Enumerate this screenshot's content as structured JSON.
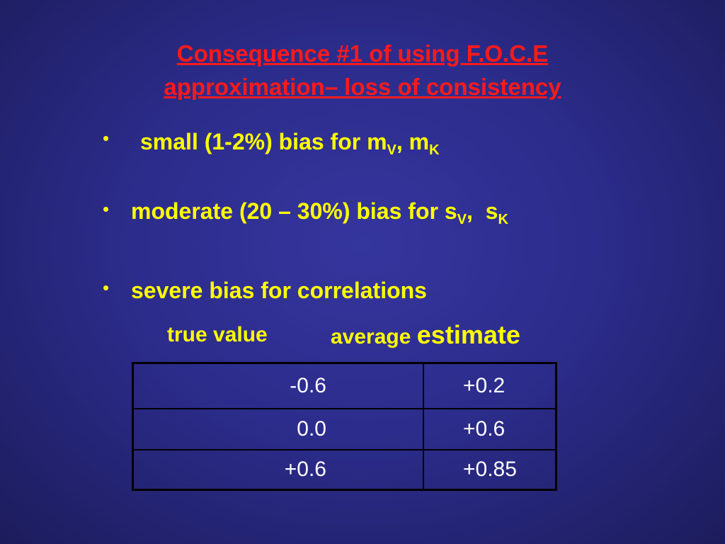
{
  "slide": {
    "title_line1": "Consequence #1 of using F.O.C.E",
    "title_line2": "approximation– loss of consistency",
    "bullet_char": "•",
    "bullets": [
      {
        "text": "small (1-2%) bias for m",
        "sub1": "V",
        "mid": ", m",
        "sub2": "K"
      },
      {
        "text": "moderate (20 – 30%) bias for s",
        "sub1": "V",
        "mid": ",  s",
        "sub2": "K"
      },
      {
        "text": "severe bias for correlations"
      }
    ],
    "table": {
      "col1_header": "true value",
      "col2_header_a": "average",
      "col2_header_b": "estimate",
      "rows": [
        {
          "true_value": "-0.6",
          "average_estimate": "+0.2"
        },
        {
          "true_value": "0.0",
          "average_estimate": "+0.6"
        },
        {
          "true_value": "+0.6",
          "average_estimate": "+0.85"
        }
      ]
    }
  },
  "colors": {
    "background": "#2f2f96",
    "title": "#ff1a1a",
    "bullets": "#ffff00",
    "table_text": "#ffffff",
    "table_border": "#000000"
  }
}
